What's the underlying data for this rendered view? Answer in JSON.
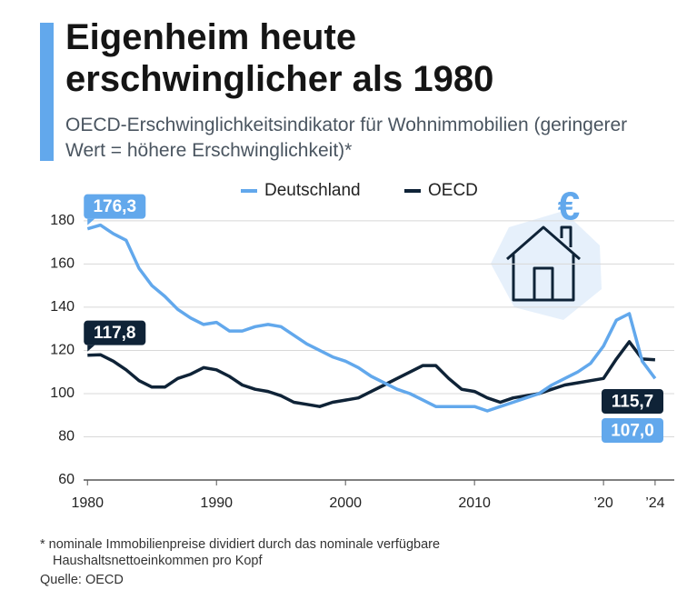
{
  "chart_data": {
    "type": "line",
    "title": "Eigenheim heute erschwinglicher als 1980",
    "subtitle": "OECD-Erschwinglichkeitsindikator für Wohnimmobilien (geringerer Wert = höhere Erschwinglichkeit)*",
    "footnote": "* nominale Immobilienpreise dividiert durch das nominale verfügbare Haushaltsnettoeinkommen pro Kopf",
    "source": "Quelle: OECD",
    "x": [
      1980,
      1981,
      1982,
      1983,
      1984,
      1985,
      1986,
      1987,
      1988,
      1989,
      1990,
      1991,
      1992,
      1993,
      1994,
      1995,
      1996,
      1997,
      1998,
      1999,
      2000,
      2001,
      2002,
      2003,
      2004,
      2005,
      2006,
      2007,
      2008,
      2009,
      2010,
      2011,
      2012,
      2013,
      2014,
      2015,
      2016,
      2017,
      2018,
      2019,
      2020,
      2021,
      2022,
      2023,
      2024
    ],
    "series": [
      {
        "name": "Deutschland",
        "color": "#62a8ec",
        "values": [
          176.3,
          178,
          174,
          171,
          158,
          150,
          145,
          139,
          135,
          132,
          133,
          129,
          129,
          131,
          132,
          131,
          127,
          123,
          120,
          117,
          115,
          112,
          108,
          105,
          102,
          100,
          97,
          94,
          94,
          94,
          94,
          92,
          94,
          96,
          98,
          100,
          104,
          107,
          110,
          114,
          122,
          134,
          137,
          115,
          107.0
        ],
        "value_labels": [
          "176,3",
          null,
          null,
          null,
          null,
          null,
          null,
          null,
          null,
          null,
          null,
          null,
          null,
          null,
          null,
          null,
          null,
          null,
          null,
          null,
          null,
          null,
          null,
          null,
          null,
          null,
          null,
          null,
          null,
          null,
          null,
          null,
          null,
          null,
          null,
          null,
          null,
          null,
          null,
          null,
          null,
          null,
          null,
          null,
          "107,0"
        ]
      },
      {
        "name": "OECD",
        "color": "#0f2337",
        "values": [
          117.8,
          118,
          115,
          111,
          106,
          103,
          103,
          107,
          109,
          112,
          111,
          108,
          104,
          102,
          101,
          99,
          96,
          95,
          94,
          96,
          97,
          98,
          101,
          104,
          107,
          110,
          113,
          113,
          107,
          102,
          101,
          98,
          96,
          98,
          99,
          100,
          102,
          104,
          105,
          106,
          107,
          116,
          124,
          116,
          115.7
        ],
        "value_labels": [
          "117,8",
          null,
          null,
          null,
          null,
          null,
          null,
          null,
          null,
          null,
          null,
          null,
          null,
          null,
          null,
          null,
          null,
          null,
          null,
          null,
          null,
          null,
          null,
          null,
          null,
          null,
          null,
          null,
          null,
          null,
          null,
          null,
          null,
          null,
          null,
          null,
          null,
          null,
          null,
          null,
          null,
          null,
          null,
          null,
          "115,7"
        ]
      }
    ],
    "xlim": [
      1979.7,
      2024.5
    ],
    "xticks": [
      1980,
      1990,
      2000,
      2010,
      {
        "value": 2020,
        "label": "’20"
      },
      {
        "value": 2024,
        "label": "’24"
      }
    ],
    "ylim": [
      60,
      185
    ],
    "yticks": [
      60,
      80,
      100,
      120,
      140,
      160,
      180
    ],
    "grid": true
  }
}
